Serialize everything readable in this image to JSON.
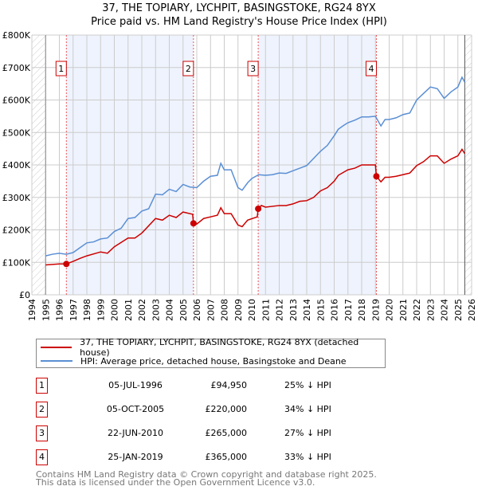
{
  "chart_data": {
    "type": "line",
    "title": "37, THE TOPIARY, LYCHPIT, BASINGSTOKE, RG24 8YX",
    "subtitle": "Price paid vs. HM Land Registry's House Price Index (HPI)",
    "xlim": [
      1994,
      2026
    ],
    "ylim": [
      0,
      800000
    ],
    "x_ticks": [
      "1994",
      "1995",
      "1996",
      "1997",
      "1998",
      "1999",
      "2000",
      "2001",
      "2002",
      "2003",
      "2004",
      "2005",
      "2006",
      "2007",
      "2008",
      "2009",
      "2010",
      "2011",
      "2012",
      "2013",
      "2014",
      "2015",
      "2016",
      "2017",
      "2018",
      "2019",
      "2020",
      "2021",
      "2022",
      "2023",
      "2024",
      "2025",
      "2026"
    ],
    "y_ticks": [
      {
        "v": 0,
        "label": "£0"
      },
      {
        "v": 100000,
        "label": "£100K"
      },
      {
        "v": 200000,
        "label": "£200K"
      },
      {
        "v": 300000,
        "label": "£300K"
      },
      {
        "v": 400000,
        "label": "£400K"
      },
      {
        "v": 500000,
        "label": "£500K"
      },
      {
        "v": 600000,
        "label": "£600K"
      },
      {
        "v": 700000,
        "label": "£700K"
      },
      {
        "v": 800000,
        "label": "£800K"
      }
    ],
    "grid": true,
    "series": [
      {
        "name": "37, THE TOPIARY, LYCHPIT, BASINGSTOKE, RG24 8YX (detached house)",
        "color": "#cc0000",
        "x": [
          1995,
          1996,
          1996.5,
          1997,
          1997.5,
          1998,
          1999,
          1999.5,
          2000,
          2001,
          2001.5,
          2002,
          2003,
          2003.5,
          2004,
          2004.5,
          2005,
          2005.7,
          2005.76,
          2006,
          2006.5,
          2007,
          2007.5,
          2007.75,
          2008,
          2008.5,
          2009,
          2009.3,
          2009.7,
          2010.4,
          2010.47,
          2010.7,
          2011,
          2012,
          2012.5,
          2013,
          2013.5,
          2014,
          2014.5,
          2015,
          2015.5,
          2016,
          2016.3,
          2016.7,
          2017,
          2017.5,
          2018,
          2018.5,
          2019,
          2019.07,
          2019.4,
          2019.7,
          2020,
          2020.5,
          2021,
          2021.5,
          2022,
          2022.5,
          2023,
          2023.5,
          2024,
          2024.5,
          2025,
          2025.3,
          2025.5
        ],
        "y": [
          92000,
          95000,
          95000,
          103000,
          112000,
          120000,
          132000,
          128000,
          148000,
          175000,
          175000,
          190000,
          235000,
          230000,
          245000,
          238000,
          255000,
          248000,
          220000,
          218000,
          235000,
          240000,
          245000,
          268000,
          250000,
          250000,
          215000,
          210000,
          230000,
          240000,
          265000,
          275000,
          270000,
          275000,
          275000,
          280000,
          288000,
          290000,
          300000,
          320000,
          330000,
          350000,
          368000,
          378000,
          385000,
          390000,
          400000,
          400000,
          400000,
          365000,
          348000,
          362000,
          362000,
          365000,
          370000,
          375000,
          398000,
          410000,
          428000,
          428000,
          405000,
          418000,
          428000,
          448000,
          435000
        ]
      },
      {
        "name": "HPI: Average price, detached house, Basingstoke and Deane",
        "color": "#5b8fd4",
        "x": [
          1995,
          1995.5,
          1996,
          1996.5,
          1997,
          1997.5,
          1998,
          1998.5,
          1999,
          1999.5,
          2000,
          2000.5,
          2001,
          2001.5,
          2002,
          2002.5,
          2003,
          2003.5,
          2004,
          2004.5,
          2005,
          2005.5,
          2006,
          2006.5,
          2007,
          2007.5,
          2007.75,
          2008,
          2008.5,
          2009,
          2009.3,
          2009.7,
          2010,
          2010.5,
          2011,
          2011.5,
          2012,
          2012.5,
          2013,
          2013.5,
          2014,
          2014.5,
          2015,
          2015.5,
          2016,
          2016.3,
          2016.7,
          2017,
          2017.5,
          2018,
          2018.5,
          2019,
          2019.4,
          2019.7,
          2020,
          2020.5,
          2021,
          2021.5,
          2022,
          2022.5,
          2023,
          2023.5,
          2024,
          2024.5,
          2025,
          2025.3,
          2025.5
        ],
        "y": [
          120000,
          125000,
          128000,
          125000,
          130000,
          145000,
          160000,
          163000,
          172000,
          175000,
          195000,
          205000,
          235000,
          238000,
          258000,
          265000,
          310000,
          308000,
          325000,
          318000,
          340000,
          332000,
          330000,
          350000,
          365000,
          368000,
          405000,
          385000,
          385000,
          330000,
          322000,
          345000,
          358000,
          370000,
          368000,
          370000,
          375000,
          374000,
          382000,
          390000,
          398000,
          420000,
          442000,
          460000,
          490000,
          510000,
          522000,
          530000,
          538000,
          548000,
          548000,
          550000,
          520000,
          540000,
          540000,
          545000,
          555000,
          560000,
          600000,
          620000,
          640000,
          635000,
          605000,
          625000,
          640000,
          670000,
          655000
        ]
      }
    ],
    "sales": [
      {
        "label": "1",
        "x": 1996.51,
        "y": 94950,
        "date": "05-JUL-1996",
        "price": "£94,950",
        "hpi": "25% ↓ HPI"
      },
      {
        "label": "2",
        "x": 2005.76,
        "y": 220000,
        "date": "05-OCT-2005",
        "price": "£220,000",
        "hpi": "34% ↓ HPI"
      },
      {
        "label": "3",
        "x": 2010.47,
        "y": 265000,
        "date": "22-JUN-2010",
        "price": "£265,000",
        "hpi": "27% ↓ HPI"
      },
      {
        "label": "4",
        "x": 2019.07,
        "y": 365000,
        "date": "25-JAN-2019",
        "price": "£365,000",
        "hpi": "33% ↓ HPI"
      }
    ],
    "shaded_ranges": [
      [
        1996.51,
        2005.76
      ],
      [
        2010.47,
        2019.07
      ]
    ],
    "hatched_ranges": [
      [
        1994,
        1995
      ],
      [
        2025.5,
        2026
      ]
    ]
  },
  "legend": {
    "property": "37, THE TOPIARY, LYCHPIT, BASINGSTOKE, RG24 8YX (detached house)",
    "hpi": "HPI: Average price, detached house, Basingstoke and Deane"
  },
  "footer": {
    "line1": "Contains HM Land Registry data © Crown copyright and database right 2025.",
    "line2": "This data is licensed under the Open Government Licence v3.0."
  }
}
